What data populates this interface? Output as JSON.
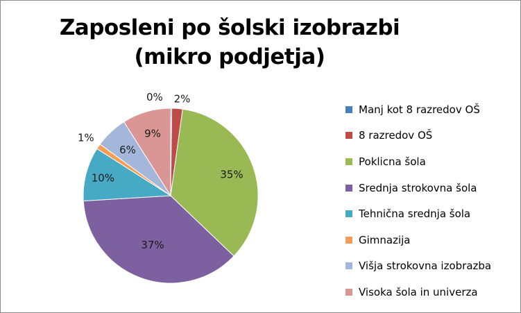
{
  "chart_data": {
    "type": "pie",
    "title": "Zaposleni po šolski izobrazbi (mikro podjetja)",
    "title_lines": [
      "Zaposleni po šolski izobrazbi",
      "(mikro podjetja)"
    ],
    "legend_position": "right",
    "slices": [
      {
        "label": "Manj kot 8 razredov OŠ",
        "value": 0.2,
        "text": "0%",
        "color": "#4a7ebb"
      },
      {
        "label": "8 razredov OŠ",
        "value": 2,
        "text": "2%",
        "color": "#be4b48"
      },
      {
        "label": "Poklicna šola",
        "value": 35,
        "text": "35%",
        "color": "#98b954"
      },
      {
        "label": "Srednja strokovna šola",
        "value": 37,
        "text": "37%",
        "color": "#7d60a0"
      },
      {
        "label": "Tehnična srednja šola",
        "value": 10,
        "text": "10%",
        "color": "#46aac5"
      },
      {
        "label": "Gimnazija",
        "value": 1,
        "text": "1%",
        "color": "#f59d56"
      },
      {
        "label": "Višja strokovna izobrazba",
        "value": 6,
        "text": "6%",
        "color": "#a5b6db"
      },
      {
        "label": "Visoka šola in univerza",
        "value": 9,
        "text": "9%",
        "color": "#d99694"
      }
    ]
  }
}
